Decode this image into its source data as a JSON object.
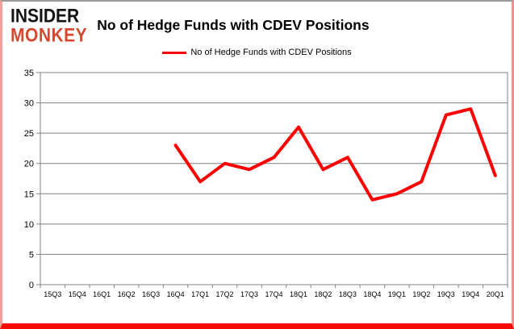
{
  "logo": {
    "line1": "INSIDER",
    "line2": "MONKEY",
    "color_line1": "#141414",
    "color_line2": "#d6482f"
  },
  "header": {
    "title": "No of Hedge Funds with CDEV Positions"
  },
  "legend": {
    "label": "No of Hedge Funds with CDEV Positions",
    "line_color": "#fe0000"
  },
  "chart_data": {
    "type": "line",
    "title": "No of Hedge Funds with CDEV Positions",
    "categories": [
      "15Q3",
      "15Q4",
      "16Q1",
      "16Q2",
      "16Q3",
      "16Q4",
      "17Q1",
      "17Q2",
      "17Q3",
      "17Q4",
      "18Q1",
      "18Q2",
      "18Q3",
      "18Q4",
      "19Q1",
      "19Q2",
      "19Q3",
      "19Q4",
      "20Q1"
    ],
    "series": [
      {
        "name": "No of Hedge Funds with CDEV Positions",
        "color": "#fe0000",
        "values": [
          null,
          null,
          null,
          null,
          null,
          23,
          17,
          20,
          19,
          21,
          26,
          19,
          21,
          14,
          15,
          17,
          28,
          29,
          18
        ]
      }
    ],
    "xlabel": "",
    "ylabel": "",
    "ylim": [
      0,
      35
    ],
    "yticks": [
      0,
      5,
      10,
      15,
      20,
      25,
      30,
      35
    ],
    "grid": "horizontal",
    "legend_position": "top-center",
    "colors": {
      "grid": "#808080",
      "axis": "#808080",
      "tick_label": "#000000",
      "background": "#ffffff"
    }
  }
}
